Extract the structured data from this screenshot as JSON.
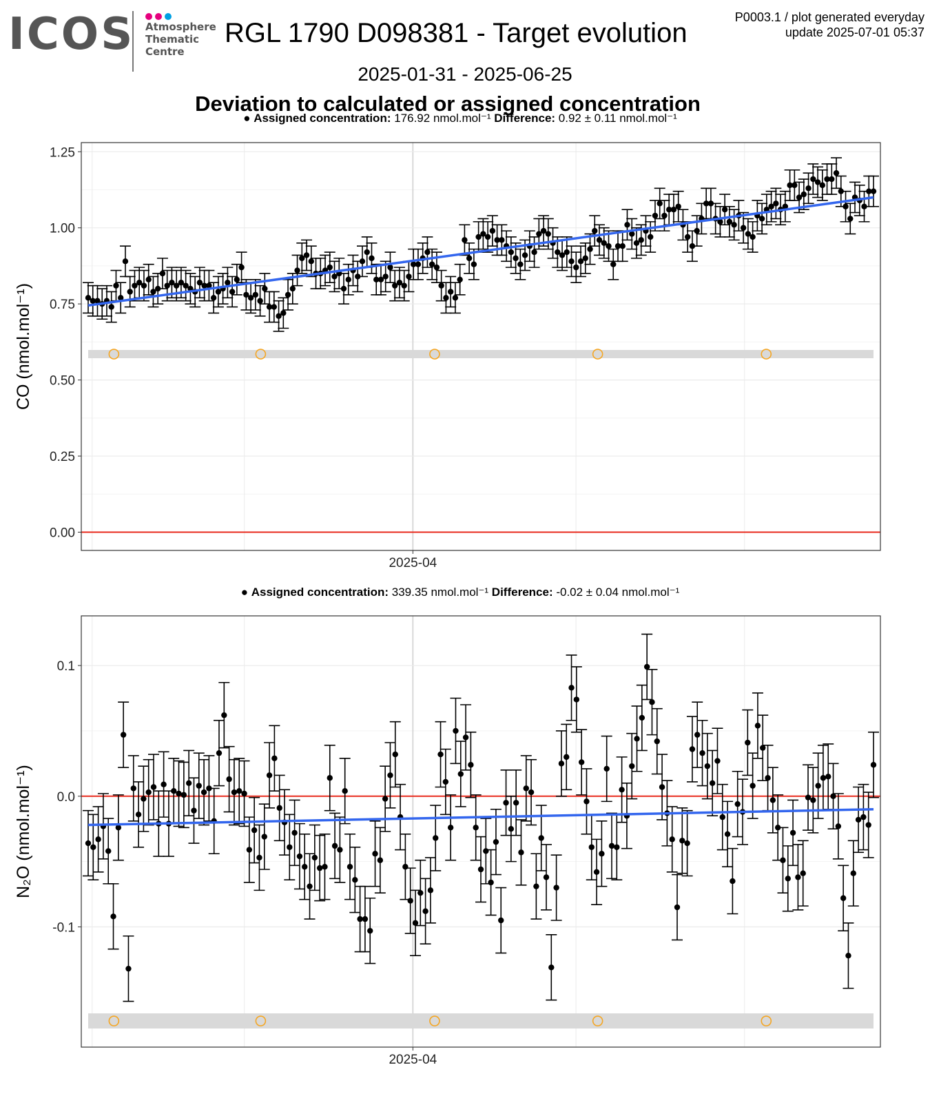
{
  "logo": {
    "word": "ICOS",
    "line1": "Atmosphere",
    "line2": "Thematic",
    "line3": "Centre",
    "dot_colors": [
      "#e6007e",
      "#e6007e",
      "#00a0e3"
    ]
  },
  "header": {
    "title": "RGL 1790 D098381 - Target evolution",
    "meta_line1": "P0003.1 / plot generated everyday",
    "meta_line2": "update  2025-07-01 05:37",
    "date_range": "2025-01-31 - 2025-06-25",
    "subtitle": "Deviation to calculated or assigned concentration"
  },
  "colors": {
    "points": "#000000",
    "trend": "#3366ee",
    "zero_line": "#e8291c",
    "markers": "#f5a623",
    "band": "#d9d9d9",
    "grid": "#ebebeb"
  },
  "chart_data": [
    {
      "type": "scatter",
      "gas": "CO",
      "ylabel": "CO (nmol.mol⁻¹)",
      "caption": {
        "assigned_label": "Assigned concentration:",
        "assigned_value": "176.92 nmol.mol⁻¹",
        "diff_label": "Difference:",
        "diff_value": "0.92 ± 0.11 nmol.mol⁻¹"
      },
      "x_axis": {
        "type": "date",
        "range": [
          "2025-01-30",
          "2025-06-26"
        ],
        "tick_labels": [
          "2025-04"
        ],
        "ticks": [
          "2025-04-01"
        ]
      },
      "ylim": [
        -0.06,
        1.28
      ],
      "yticks": [
        0.0,
        0.25,
        0.5,
        0.75,
        1.0,
        1.25
      ],
      "ytick_labels": [
        "0.00",
        "0.25",
        "0.50",
        "0.75",
        "1.00",
        "1.25"
      ],
      "grid": true,
      "error_bar_halfwidth": 0.05,
      "trend": {
        "start": 0.745,
        "end": 1.1
      },
      "reference_line": 0,
      "flagged_band_y": 0.585,
      "flag_markers": [
        "2025-02-05",
        "2025-03-04",
        "2025-04-05",
        "2025-05-05",
        "2025-06-05"
      ],
      "points": [
        0.77,
        0.76,
        0.76,
        0.75,
        0.76,
        0.74,
        0.81,
        0.77,
        0.89,
        0.79,
        0.81,
        0.82,
        0.81,
        0.83,
        0.79,
        0.8,
        0.85,
        0.81,
        0.82,
        0.81,
        0.82,
        0.81,
        0.8,
        0.79,
        0.82,
        0.81,
        0.81,
        0.77,
        0.79,
        0.8,
        0.82,
        0.79,
        0.83,
        0.87,
        0.78,
        0.77,
        0.78,
        0.76,
        0.8,
        0.74,
        0.74,
        0.71,
        0.72,
        0.78,
        0.8,
        0.86,
        0.9,
        0.91,
        0.89,
        0.85,
        0.85,
        0.86,
        0.87,
        0.84,
        0.85,
        0.8,
        0.83,
        0.86,
        0.84,
        0.89,
        0.92,
        0.9,
        0.83,
        0.83,
        0.84,
        0.87,
        0.81,
        0.82,
        0.81,
        0.84,
        0.88,
        0.88,
        0.9,
        0.92,
        0.88,
        0.87,
        0.81,
        0.77,
        0.79,
        0.77,
        0.83,
        0.96,
        0.9,
        0.88,
        0.97,
        0.98,
        0.97,
        0.99,
        0.96,
        0.96,
        0.94,
        0.92,
        0.9,
        0.88,
        0.91,
        0.94,
        0.92,
        0.98,
        0.99,
        0.98,
        0.95,
        0.92,
        0.91,
        0.92,
        0.89,
        0.87,
        0.89,
        0.9,
        0.93,
        0.99,
        0.96,
        0.95,
        0.94,
        0.88,
        0.94,
        0.94,
        1.01,
        0.98,
        0.95,
        0.96,
        0.99,
        0.97,
        1.04,
        1.08,
        1.04,
        1.06,
        1.06,
        1.07,
        1.01,
        0.97,
        0.94,
        0.99,
        1.03,
        1.08,
        1.08,
        1.03,
        1.02,
        1.06,
        1.02,
        1.01,
        1.04,
        1.0,
        0.98,
        0.97,
        1.04,
        1.03,
        1.06,
        1.07,
        1.08,
        1.06,
        1.07,
        1.14,
        1.14,
        1.1,
        1.11,
        1.13,
        1.16,
        1.15,
        1.14,
        1.16,
        1.16,
        1.18,
        1.12,
        1.07,
        1.03,
        1.1,
        1.09,
        1.07,
        1.12,
        1.12
      ]
    },
    {
      "type": "scatter",
      "gas": "N2O",
      "ylabel": "N₂O (nmol.mol⁻¹)",
      "caption": {
        "assigned_label": "Assigned concentration:",
        "assigned_value": "339.35 nmol.mol⁻¹",
        "diff_label": "Difference:",
        "diff_value": "-0.02 ± 0.04 nmol.mol⁻¹"
      },
      "x_axis": {
        "type": "date",
        "range": [
          "2025-01-30",
          "2025-06-26"
        ],
        "tick_labels": [
          "2025-04"
        ],
        "ticks": [
          "2025-04-01"
        ]
      },
      "ylim": [
        -0.192,
        0.138
      ],
      "yticks": [
        -0.1,
        0.0,
        0.1
      ],
      "ytick_labels": [
        "-0.1",
        "0.0",
        "0.1"
      ],
      "grid": true,
      "error_bar_halfwidth": 0.025,
      "trend": {
        "start": -0.022,
        "end": -0.01
      },
      "reference_line": 0,
      "flagged_band_y": -0.172,
      "flag_markers": [
        "2025-02-05",
        "2025-03-04",
        "2025-04-05",
        "2025-05-05",
        "2025-06-05"
      ],
      "points": [
        -0.036,
        -0.039,
        -0.033,
        -0.023,
        -0.042,
        -0.092,
        -0.024,
        0.047,
        -0.132,
        0.006,
        -0.014,
        -0.002,
        0.003,
        0.007,
        -0.021,
        0.009,
        -0.021,
        0.004,
        0.002,
        0.001,
        0.01,
        -0.011,
        0.008,
        0.003,
        0.006,
        -0.019,
        0.033,
        0.062,
        0.013,
        0.003,
        0.004,
        0.002,
        -0.041,
        -0.026,
        -0.047,
        -0.031,
        0.016,
        0.029,
        -0.009,
        -0.02,
        -0.039,
        -0.028,
        -0.046,
        -0.054,
        -0.069,
        -0.047,
        -0.055,
        -0.054,
        0.014,
        -0.038,
        -0.041,
        0.004,
        -0.054,
        -0.064,
        -0.094,
        -0.094,
        -0.103,
        -0.044,
        -0.049,
        -0.002,
        0.016,
        0.032,
        -0.016,
        -0.054,
        -0.08,
        -0.097,
        -0.074,
        -0.088,
        -0.072,
        -0.032,
        0.032,
        0.011,
        -0.024,
        0.05,
        0.017,
        0.045,
        0.024,
        -0.024,
        -0.056,
        -0.042,
        -0.066,
        -0.035,
        -0.095,
        -0.005,
        -0.025,
        -0.005,
        -0.043,
        0.006,
        0.003,
        -0.069,
        -0.032,
        -0.062,
        -0.131,
        -0.07,
        0.025,
        0.03,
        0.083,
        0.074,
        0.026,
        -0.004,
        -0.039,
        -0.058,
        -0.044,
        0.021,
        -0.038,
        -0.039,
        0.005,
        -0.015,
        0.023,
        0.044,
        0.06,
        0.099,
        0.072,
        0.042,
        0.007,
        -0.013,
        -0.033,
        -0.085,
        -0.034,
        -0.036,
        0.036,
        0.047,
        0.033,
        0.023,
        0.01,
        0.027,
        -0.016,
        -0.029,
        -0.065,
        -0.006,
        -0.012,
        0.041,
        0.008,
        0.054,
        0.037,
        0.014,
        -0.003,
        -0.024,
        -0.049,
        -0.063,
        -0.028,
        -0.062,
        -0.059,
        -0.001,
        -0.003,
        0.008,
        0.014,
        0.015,
        0.0,
        -0.023,
        -0.078,
        -0.122,
        -0.059,
        -0.018,
        -0.016,
        -0.022,
        0.024
      ]
    }
  ]
}
